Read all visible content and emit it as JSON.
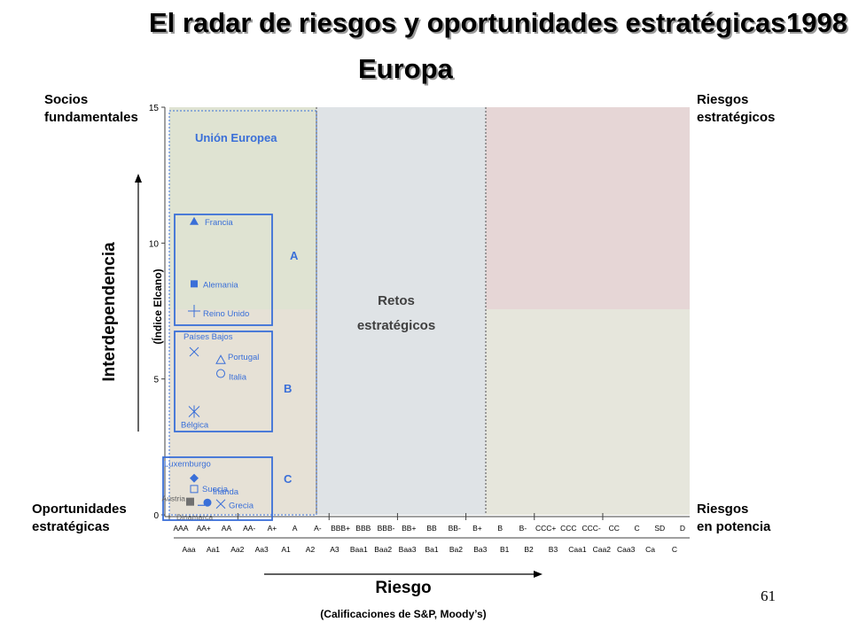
{
  "header": {
    "title": "El radar de riesgos y oportunidades estratégicas",
    "year": "1998",
    "subtitle": "Europa"
  },
  "corners": {
    "top_left": [
      "Socios",
      "fundamentales"
    ],
    "top_right": [
      "Riesgos",
      "estratégicos"
    ],
    "bottom_left": [
      "Oportunidades",
      "estratégicas"
    ],
    "bottom_right": [
      "Riesgos",
      "en potencia"
    ]
  },
  "page_number": "61",
  "chart_data": {
    "type": "scatter",
    "xlabel": "Riesgo",
    "xlabel_sub": "(Calificaciones de S&P, Moody’s)",
    "ylabel": "Interdependencia",
    "ylabel_sub": "(Índice Elcano)",
    "ylim": [
      0,
      15
    ],
    "y_ticks": [
      "0",
      "5",
      "10",
      "15"
    ],
    "x_ticks_sp": [
      "AAA",
      "AA+",
      "AA",
      "AA-",
      "A+",
      "A",
      "A-",
      "BBB+",
      "BBB",
      "BBB-",
      "BB+",
      "BB",
      "BB-",
      "B+",
      "B",
      "B-",
      "CCC+",
      "CCC",
      "CCC-",
      "CC",
      "C",
      "SD",
      "D"
    ],
    "x_ticks_moodys": [
      "Aaa",
      "Aa1",
      "Aa2",
      "Aa3",
      "A1",
      "A2",
      "A3",
      "Baa1",
      "Baa2",
      "Baa3",
      "Ba1",
      "Ba2",
      "Ba3",
      "B1",
      "B2",
      "B3",
      "Caa1",
      "Caa2",
      "Caa3",
      "Ca",
      "C"
    ],
    "regions": {
      "eu_label": "Unión Europea",
      "center_label": [
        "Retos",
        "estratégicos"
      ],
      "group_labels": [
        "A",
        "B",
        "C"
      ],
      "colors": {
        "green": "#dfe3d2",
        "beige": "#e6e1d6",
        "gray_blue": "#dfe3e6",
        "pink": "#e6d6d6",
        "olive": "#e6e6dc",
        "accent_blue": "#3a6fd8"
      }
    },
    "points": [
      {
        "name": "Francia",
        "x": "AAA",
        "y": 10.8,
        "marker": "triangle"
      },
      {
        "name": "Alemania",
        "x": "AAA",
        "y": 8.5,
        "marker": "square"
      },
      {
        "name": "Reino Unido",
        "x": "AAA",
        "y": 7.5,
        "marker": "plus"
      },
      {
        "name": "Países Bajos",
        "x": "AAA",
        "y": 6.0,
        "marker": "x"
      },
      {
        "name": "Portugal",
        "x": "AA",
        "y": 5.7,
        "marker": "open-triangle"
      },
      {
        "name": "Italia",
        "x": "AA",
        "y": 5.2,
        "marker": "open-circle"
      },
      {
        "name": "Bélgica",
        "x": "AAA",
        "y": 3.8,
        "marker": "asterisk"
      },
      {
        "name": "Luxemburgo",
        "x": "AAA",
        "y": 1.35,
        "marker": "diamond"
      },
      {
        "name": "Suecia",
        "x": "AAA",
        "y": 0.95,
        "marker": "open-square"
      },
      {
        "name": "Irlanda",
        "x": "AA+",
        "y": 0.45,
        "marker": "filled-circle"
      },
      {
        "name": "Austria",
        "x": "AAA",
        "y": 0.5,
        "marker": "gray-square"
      },
      {
        "name": "Grecia",
        "x": "AA",
        "y": 0.4,
        "marker": "x"
      },
      {
        "name": "Dinamarca",
        "x": "AA+",
        "y": 0.35,
        "marker": "dash"
      }
    ]
  }
}
